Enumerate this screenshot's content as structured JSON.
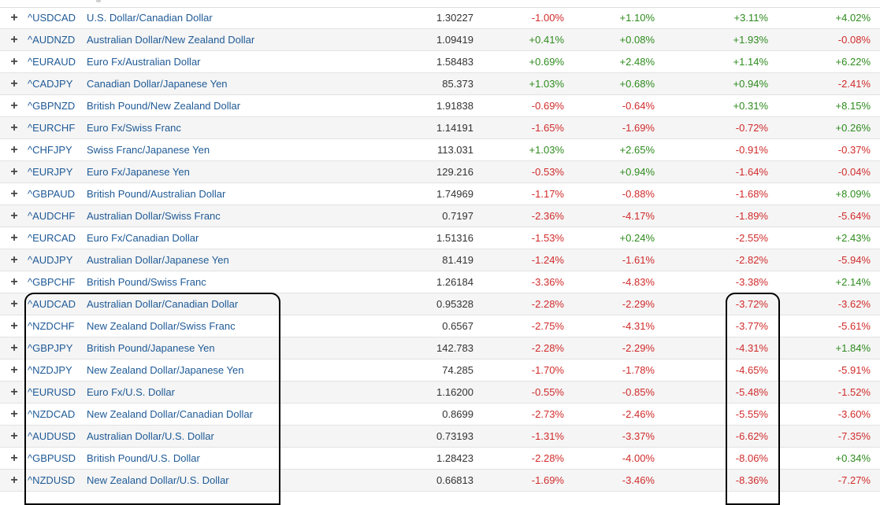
{
  "rows": [
    {
      "symbol": "^USDCAD",
      "name": "U.S. Dollar/Canadian Dollar",
      "price": "1.30227",
      "c1": "-1.00%",
      "c2": "+1.10%",
      "c3": "+3.11%",
      "c4": "+4.02%"
    },
    {
      "symbol": "^AUDNZD",
      "name": "Australian Dollar/New Zealand Dollar",
      "price": "1.09419",
      "c1": "+0.41%",
      "c2": "+0.08%",
      "c3": "+1.93%",
      "c4": "-0.08%"
    },
    {
      "symbol": "^EURAUD",
      "name": "Euro Fx/Australian Dollar",
      "price": "1.58483",
      "c1": "+0.69%",
      "c2": "+2.48%",
      "c3": "+1.14%",
      "c4": "+6.22%"
    },
    {
      "symbol": "^CADJPY",
      "name": "Canadian Dollar/Japanese Yen",
      "price": "85.373",
      "c1": "+1.03%",
      "c2": "+0.68%",
      "c3": "+0.94%",
      "c4": "-2.41%"
    },
    {
      "symbol": "^GBPNZD",
      "name": "British Pound/New Zealand Dollar",
      "price": "1.91838",
      "c1": "-0.69%",
      "c2": "-0.64%",
      "c3": "+0.31%",
      "c4": "+8.15%"
    },
    {
      "symbol": "^EURCHF",
      "name": "Euro Fx/Swiss Franc",
      "price": "1.14191",
      "c1": "-1.65%",
      "c2": "-1.69%",
      "c3": "-0.72%",
      "c4": "+0.26%"
    },
    {
      "symbol": "^CHFJPY",
      "name": "Swiss Franc/Japanese Yen",
      "price": "113.031",
      "c1": "+1.03%",
      "c2": "+2.65%",
      "c3": "-0.91%",
      "c4": "-0.37%"
    },
    {
      "symbol": "^EURJPY",
      "name": "Euro Fx/Japanese Yen",
      "price": "129.216",
      "c1": "-0.53%",
      "c2": "+0.94%",
      "c3": "-1.64%",
      "c4": "-0.04%"
    },
    {
      "symbol": "^GBPAUD",
      "name": "British Pound/Australian Dollar",
      "price": "1.74969",
      "c1": "-1.17%",
      "c2": "-0.88%",
      "c3": "-1.68%",
      "c4": "+8.09%"
    },
    {
      "symbol": "^AUDCHF",
      "name": "Australian Dollar/Swiss Franc",
      "price": "0.7197",
      "c1": "-2.36%",
      "c2": "-4.17%",
      "c3": "-1.89%",
      "c4": "-5.64%"
    },
    {
      "symbol": "^EURCAD",
      "name": "Euro Fx/Canadian Dollar",
      "price": "1.51316",
      "c1": "-1.53%",
      "c2": "+0.24%",
      "c3": "-2.55%",
      "c4": "+2.43%"
    },
    {
      "symbol": "^AUDJPY",
      "name": "Australian Dollar/Japanese Yen",
      "price": "81.419",
      "c1": "-1.24%",
      "c2": "-1.61%",
      "c3": "-2.82%",
      "c4": "-5.94%"
    },
    {
      "symbol": "^GBPCHF",
      "name": "British Pound/Swiss Franc",
      "price": "1.26184",
      "c1": "-3.36%",
      "c2": "-4.83%",
      "c3": "-3.38%",
      "c4": "+2.14%"
    },
    {
      "symbol": "^AUDCAD",
      "name": "Australian Dollar/Canadian Dollar",
      "price": "0.95328",
      "c1": "-2.28%",
      "c2": "-2.29%",
      "c3": "-3.72%",
      "c4": "-3.62%"
    },
    {
      "symbol": "^NZDCHF",
      "name": "New Zealand Dollar/Swiss Franc",
      "price": "0.6567",
      "c1": "-2.75%",
      "c2": "-4.31%",
      "c3": "-3.77%",
      "c4": "-5.61%"
    },
    {
      "symbol": "^GBPJPY",
      "name": "British Pound/Japanese Yen",
      "price": "142.783",
      "c1": "-2.28%",
      "c2": "-2.29%",
      "c3": "-4.31%",
      "c4": "+1.84%"
    },
    {
      "symbol": "^NZDJPY",
      "name": "New Zealand Dollar/Japanese Yen",
      "price": "74.285",
      "c1": "-1.70%",
      "c2": "-1.78%",
      "c3": "-4.65%",
      "c4": "-5.91%"
    },
    {
      "symbol": "^EURUSD",
      "name": "Euro Fx/U.S. Dollar",
      "price": "1.16200",
      "c1": "-0.55%",
      "c2": "-0.85%",
      "c3": "-5.48%",
      "c4": "-1.52%"
    },
    {
      "symbol": "^NZDCAD",
      "name": "New Zealand Dollar/Canadian Dollar",
      "price": "0.8699",
      "c1": "-2.73%",
      "c2": "-2.46%",
      "c3": "-5.55%",
      "c4": "-3.60%"
    },
    {
      "symbol": "^AUDUSD",
      "name": "Australian Dollar/U.S. Dollar",
      "price": "0.73193",
      "c1": "-1.31%",
      "c2": "-3.37%",
      "c3": "-6.62%",
      "c4": "-7.35%"
    },
    {
      "symbol": "^GBPUSD",
      "name": "British Pound/U.S. Dollar",
      "price": "1.28423",
      "c1": "-2.28%",
      "c2": "-4.00%",
      "c3": "-8.06%",
      "c4": "+0.34%"
    },
    {
      "symbol": "^NZDUSD",
      "name": "New Zealand Dollar/U.S. Dollar",
      "price": "0.66813",
      "c1": "-1.69%",
      "c2": "-3.46%",
      "c3": "-8.36%",
      "c4": "-7.27%"
    }
  ],
  "expand_glyph": "+",
  "colors": {
    "positive": "#2e8b1e",
    "negative": "#d12b2b",
    "link": "#1f5a96"
  }
}
